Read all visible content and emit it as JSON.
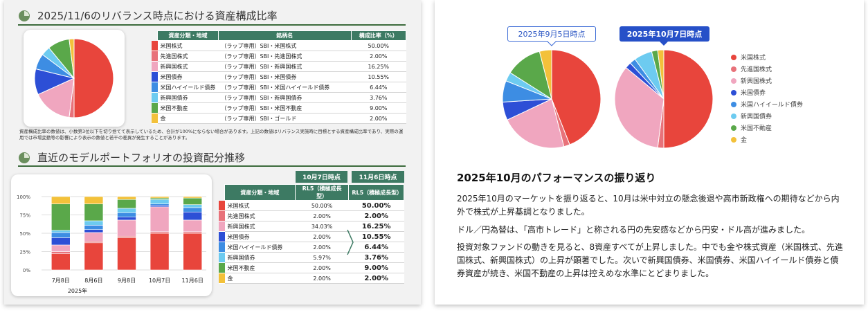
{
  "left": {
    "section1_title": "2025/11/6のリバランス時点における資産構成比率",
    "table1": {
      "headers": [
        "資産分類・地域",
        "銘柄名",
        "構成比率（%）"
      ],
      "rows": [
        {
          "asset": "米国株式",
          "fund": "（ラップ専用）SBI・米国株式",
          "ratio": "50.00%",
          "color": "#e8453c"
        },
        {
          "asset": "先進国株式",
          "fund": "（ラップ専用）SBI・先進国株式",
          "ratio": "2.00%",
          "color": "#e8727a"
        },
        {
          "asset": "新興国株式",
          "fund": "（ラップ専用）SBI・新興国株式",
          "ratio": "16.25%",
          "color": "#f0a6bf"
        },
        {
          "asset": "米国債券",
          "fund": "（ラップ専用）SBI・米国債券",
          "ratio": "10.55%",
          "color": "#2d4fd6"
        },
        {
          "asset": "米国ハイイールド債券",
          "fund": "（ラップ専用）SBI・米国ハイイールド債券",
          "ratio": "6.44%",
          "color": "#3d8de3"
        },
        {
          "asset": "新興国債券",
          "fund": "（ラップ専用）SBI・新興国債券",
          "ratio": "3.76%",
          "color": "#6dcbf0"
        },
        {
          "asset": "米国不動産",
          "fund": "（ラップ専用）SBI・米国不動産",
          "ratio": "9.00%",
          "color": "#5aa84a"
        },
        {
          "asset": "金",
          "fund": "（ラップ専用）SBI・ゴールド",
          "ratio": "2.00%",
          "color": "#f3c13a"
        }
      ]
    },
    "note": "資産構成比率の数値は、小数第3位以下を切り捨てて表示しているため、合計が100%にならない場合があります。上記の数値はリバランス実施時に目標とする資産構成比率であり、実際の運用では市場変動等の影響により表示の数値と若干の差異が発生することがあります。",
    "section2_title": "直近のモデルポートフォリオの投資配分推移",
    "bar_chart": {
      "y_ticks": [
        "100%",
        "75%",
        "50%",
        "25%",
        "0%"
      ],
      "x_labels": [
        "7月8日",
        "8月6日",
        "9月8日",
        "10月7日",
        "11月6日"
      ],
      "year_label": "2025年"
    },
    "table2": {
      "date_oct": "10月7日時点",
      "date_nov": "11月6日時点",
      "headers": [
        "資産分類・地域",
        "RL5（積極成長型）",
        "RL5（積極成長型）"
      ],
      "rows": [
        {
          "asset": "米国株式",
          "oct": "50.00%",
          "nov": "50.00%",
          "color": "#e8453c"
        },
        {
          "asset": "先進国株式",
          "oct": "2.00%",
          "nov": "2.00%",
          "color": "#e8727a"
        },
        {
          "asset": "新興国株式",
          "oct": "34.03%",
          "nov": "16.25%",
          "color": "#f0a6bf"
        },
        {
          "asset": "米国債券",
          "oct": "2.00%",
          "nov": "10.55%",
          "color": "#2d4fd6"
        },
        {
          "asset": "米国ハイイールド債券",
          "oct": "2.00%",
          "nov": "6.44%",
          "color": "#3d8de3"
        },
        {
          "asset": "新興国債券",
          "oct": "5.97%",
          "nov": "3.76%",
          "color": "#6dcbf0"
        },
        {
          "asset": "米国不動産",
          "oct": "2.00%",
          "nov": "9.00%",
          "color": "#5aa84a"
        },
        {
          "asset": "金",
          "oct": "2.00%",
          "nov": "2.00%",
          "color": "#f3c13a"
        }
      ]
    }
  },
  "right": {
    "bubble_sep": "2025年9月5日時点",
    "bubble_oct": "2025年10月7日時点",
    "legend": [
      {
        "label": "米国株式",
        "color": "#e8453c"
      },
      {
        "label": "先進国株式",
        "color": "#e8727a"
      },
      {
        "label": "新興国株式",
        "color": "#f0a6bf"
      },
      {
        "label": "米国債券",
        "color": "#2d4fd6"
      },
      {
        "label": "米国ハイイールド債券",
        "color": "#3d8de3"
      },
      {
        "label": "新興国債券",
        "color": "#6dcbf0"
      },
      {
        "label": "米国不動産",
        "color": "#5aa84a"
      },
      {
        "label": "金",
        "color": "#f3c13a"
      }
    ],
    "heading": "2025年10月のパフォーマンスの振り返り",
    "p1": "2025年10月のマーケットを振り返ると、10月は米中対立の懸念後退や高市新政権への期待などから内外で株式が上昇基調となりました。",
    "p2": "ドル／円為替は、「高市トレード」と称される円の先安感などから円安・ドル高が進みました。",
    "p3": "投資対象ファンドの動きを見ると、8資産すべてが上昇しました。中でも金や株式資産（米国株式、先進国株式、新興国株式）の上昇が顕著でした。次いで新興国債券、米国債券、米国ハイイールド債券と債券資産が続き、米国不動産の上昇は控えめな水準にとどまりました。"
  },
  "chart_data": [
    {
      "type": "pie",
      "title": "",
      "categories": [
        "米国株式",
        "先進国株式",
        "新興国株式",
        "米国債券",
        "米国ハイイールド債券",
        "新興国債券",
        "米国不動産",
        "金"
      ],
      "values": [
        50.0,
        2.0,
        16.25,
        10.55,
        6.44,
        3.76,
        9.0,
        2.0
      ],
      "colors": [
        "#e8453c",
        "#e8727a",
        "#f0a6bf",
        "#2d4fd6",
        "#3d8de3",
        "#6dcbf0",
        "#5aa84a",
        "#f3c13a"
      ]
    },
    {
      "type": "bar",
      "stacked": true,
      "categories": [
        "7月8日",
        "8月6日",
        "9月8日",
        "10月7日",
        "11月6日"
      ],
      "ylim": [
        0,
        100
      ],
      "y_ticks": [
        "100%",
        "75%",
        "50%",
        "25%",
        "0%"
      ],
      "grid": true,
      "series": [
        {
          "name": "米国株式",
          "color": "#e8453c",
          "values": [
            22,
            37,
            44,
            50,
            50
          ]
        },
        {
          "name": "先進国株式",
          "color": "#e8727a",
          "values": [
            3,
            2,
            2,
            2,
            2
          ]
        },
        {
          "name": "新興国株式",
          "color": "#f0a6bf",
          "values": [
            9,
            12,
            22,
            34,
            16
          ]
        },
        {
          "name": "米国債券",
          "color": "#2d4fd6",
          "values": [
            10,
            4,
            4,
            2,
            11
          ]
        },
        {
          "name": "米国ハイイールド債券",
          "color": "#3d8de3",
          "values": [
            7,
            6,
            6,
            2,
            6
          ]
        },
        {
          "name": "新興国債券",
          "color": "#6dcbf0",
          "values": [
            3,
            6,
            6,
            6,
            4
          ]
        },
        {
          "name": "米国不動産",
          "color": "#5aa84a",
          "values": [
            36,
            23,
            12,
            2,
            9
          ]
        },
        {
          "name": "金",
          "color": "#f3c13a",
          "values": [
            10,
            10,
            4,
            2,
            2
          ]
        }
      ]
    },
    {
      "type": "pie",
      "title": "2025年9月5日時点",
      "categories": [
        "米国株式",
        "先進国株式",
        "新興国株式",
        "米国債券",
        "米国ハイイールド債券",
        "新興国債券",
        "米国不動産",
        "金"
      ],
      "values": [
        44,
        2,
        22,
        6,
        7,
        3,
        12,
        4
      ],
      "colors": [
        "#e8453c",
        "#e8727a",
        "#f0a6bf",
        "#2d4fd6",
        "#3d8de3",
        "#6dcbf0",
        "#5aa84a",
        "#f3c13a"
      ]
    },
    {
      "type": "pie",
      "title": "2025年10月7日時点",
      "categories": [
        "米国株式",
        "先進国株式",
        "新興国株式",
        "米国債券",
        "米国ハイイールド債券",
        "新興国債券",
        "米国不動産",
        "金"
      ],
      "values": [
        50.0,
        2.0,
        34.03,
        2.0,
        2.0,
        5.97,
        2.0,
        2.0
      ],
      "colors": [
        "#e8453c",
        "#e8727a",
        "#f0a6bf",
        "#2d4fd6",
        "#3d8de3",
        "#6dcbf0",
        "#5aa84a",
        "#f3c13a"
      ]
    }
  ]
}
